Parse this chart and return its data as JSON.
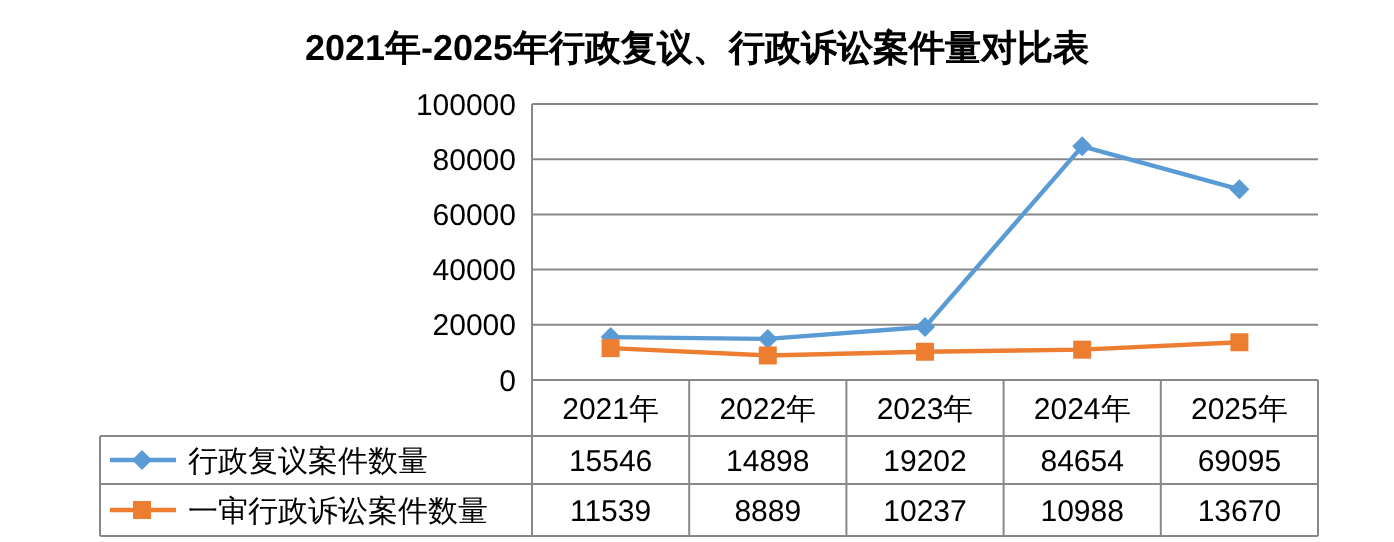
{
  "chart_data": {
    "type": "line",
    "title": "2021年-2025年行政复议、行政诉讼案件量对比表",
    "categories": [
      "2021年",
      "2022年",
      "2023年",
      "2024年",
      "2025年"
    ],
    "series": [
      {
        "name": "行政复议案件数量",
        "color": "#5b9bd5",
        "marker": "diamond",
        "values": [
          15546,
          14898,
          19202,
          84654,
          69095
        ]
      },
      {
        "name": "一审行政诉讼案件数量",
        "color": "#ed7d31",
        "marker": "square",
        "values": [
          11539,
          8889,
          10237,
          10988,
          13670
        ]
      }
    ],
    "ylim": [
      0,
      100000
    ],
    "yticks": [
      0,
      20000,
      40000,
      60000,
      80000,
      100000
    ],
    "grid": "y",
    "data_labels": true,
    "legend": "bottom"
  }
}
